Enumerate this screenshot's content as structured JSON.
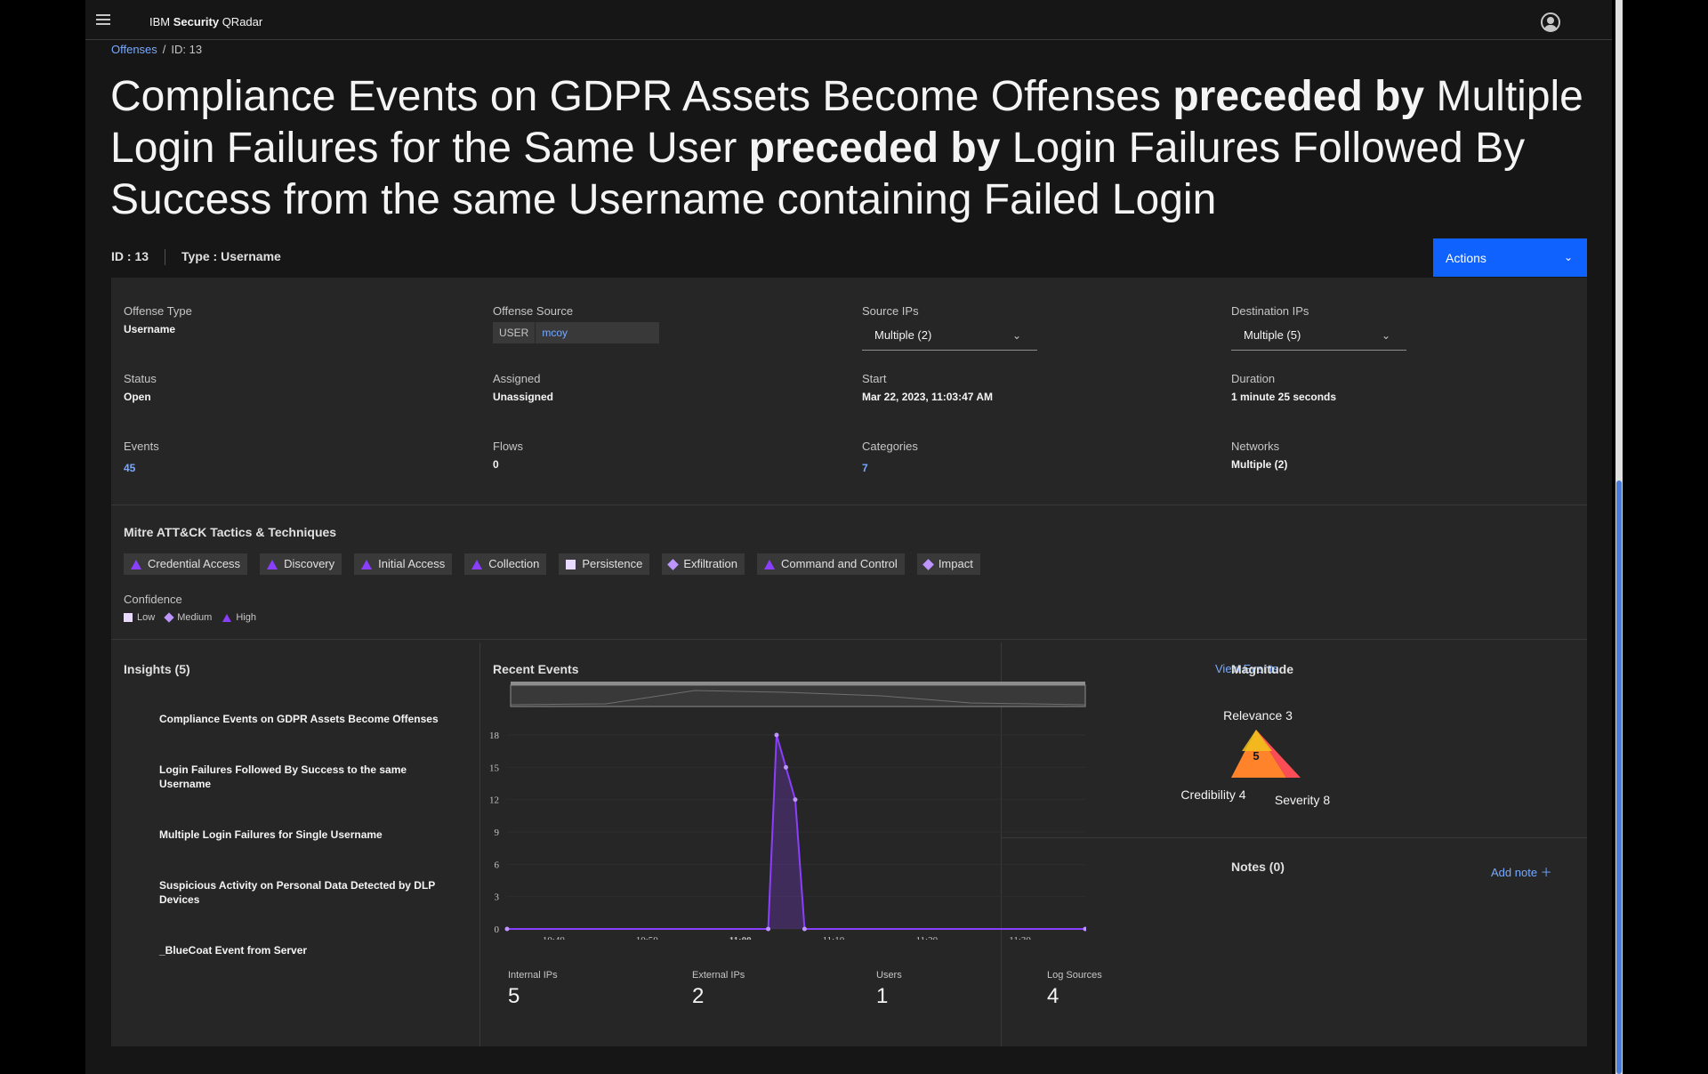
{
  "header": {
    "brand_prefix": "IBM",
    "brand_bold": "Security",
    "brand_product": "QRadar"
  },
  "breadcrumb": {
    "root": "Offenses",
    "sep": "/",
    "current": "ID: 13"
  },
  "title": {
    "part1": "Compliance Events on GDPR Assets Become Offenses",
    "kw1": "preceded by",
    "part2": "Multiple Login Failures for the Same User",
    "kw2": "preceded by",
    "part3": "Login Failures Followed By Success from the same Username containing Failed Login"
  },
  "subhead": {
    "id": "ID : 13",
    "type": "Type : Username"
  },
  "actions": {
    "label": "Actions"
  },
  "details": {
    "offense_type": {
      "label": "Offense Type",
      "value": "Username"
    },
    "offense_source": {
      "label": "Offense Source",
      "key": "USER",
      "value": "mcoy"
    },
    "source_ips": {
      "label": "Source IPs",
      "value": "Multiple (2)"
    },
    "destination_ips": {
      "label": "Destination IPs",
      "value": "Multiple (5)"
    },
    "status": {
      "label": "Status",
      "value": "Open"
    },
    "assigned": {
      "label": "Assigned",
      "value": "Unassigned"
    },
    "start": {
      "label": "Start",
      "value": "Mar 22, 2023, 11:03:47 AM"
    },
    "duration": {
      "label": "Duration",
      "value": "1 minute 25 seconds"
    },
    "events": {
      "label": "Events",
      "value": "45"
    },
    "flows": {
      "label": "Flows",
      "value": "0"
    },
    "categories": {
      "label": "Categories",
      "value": "7"
    },
    "networks": {
      "label": "Networks",
      "value": "Multiple (2)"
    }
  },
  "mitre": {
    "title": "Mitre ATT&CK Tactics & Techniques",
    "tags": [
      {
        "label": "Credential Access",
        "confidence": "high"
      },
      {
        "label": "Discovery",
        "confidence": "high"
      },
      {
        "label": "Initial Access",
        "confidence": "high"
      },
      {
        "label": "Collection",
        "confidence": "high"
      },
      {
        "label": "Persistence",
        "confidence": "low"
      },
      {
        "label": "Exfiltration",
        "confidence": "medium"
      },
      {
        "label": "Command and Control",
        "confidence": "high"
      },
      {
        "label": "Impact",
        "confidence": "medium"
      }
    ],
    "confidence_title": "Confidence",
    "legend": {
      "low": "Low",
      "medium": "Medium",
      "high": "High"
    },
    "colors": {
      "high": "#8a3ffc",
      "medium": "#be95ff",
      "low": "#e8daff"
    }
  },
  "insights": {
    "title": "Insights (5)",
    "items": [
      "Compliance Events on GDPR Assets Become Offenses",
      "Login Failures Followed By Success to the same Username",
      "Multiple Login Failures for Single Username",
      "Suspicious Activity on Personal Data Detected by DLP Devices",
      "_BlueCoat Event from Server"
    ]
  },
  "recent_events": {
    "title": "Recent Events",
    "view_events": "View Events"
  },
  "chart_data": {
    "type": "area",
    "title": "Recent Events",
    "x": [
      "10:35",
      "11:03",
      "11:03:30",
      "11:04",
      "11:05",
      "11:37"
    ],
    "x_minutes": [
      -25,
      3,
      3.5,
      4.5,
      6,
      37
    ],
    "y": [
      0,
      0,
      18,
      15,
      12,
      0
    ],
    "points": [
      {
        "t": -25,
        "v": 0
      },
      {
        "t": 3,
        "v": 0
      },
      {
        "t": 3.9,
        "v": 18
      },
      {
        "t": 4.9,
        "v": 15
      },
      {
        "t": 5.9,
        "v": 12
      },
      {
        "t": 6.9,
        "v": 0
      },
      {
        "t": 37,
        "v": 0
      }
    ],
    "xticks": [
      "10:40",
      "10:50",
      "11:00",
      "11:10",
      "11:20",
      "11:30"
    ],
    "bold_tick": "11:00",
    "yticks": [
      0,
      3,
      6,
      9,
      12,
      15,
      18
    ],
    "ylim": [
      0,
      18
    ],
    "color": "#8a3ffc"
  },
  "stats": [
    {
      "label": "Internal IPs",
      "value": "5"
    },
    {
      "label": "External IPs",
      "value": "2"
    },
    {
      "label": "Users",
      "value": "1"
    },
    {
      "label": "Log Sources",
      "value": "4"
    }
  ],
  "magnitude": {
    "title": "Magnitude",
    "value": "5",
    "relevance": "Relevance 3",
    "credibility": "Credibility 4",
    "severity": "Severity 8"
  },
  "notes": {
    "title": "Notes (0)",
    "add": "Add note"
  }
}
